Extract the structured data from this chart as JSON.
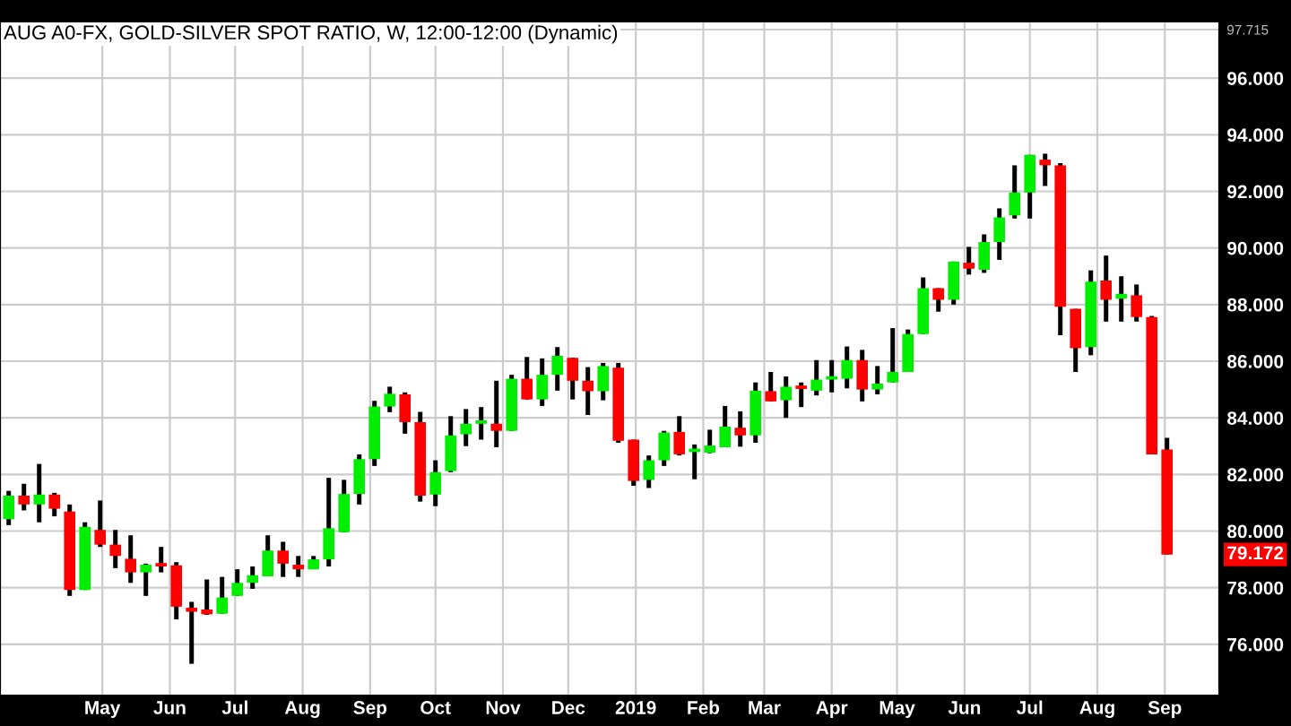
{
  "chart_data": {
    "type": "candlestick",
    "title": "AUG A0-FX, GOLD-SILVER SPOT RATIO, W, 12:00-12:00 (Dynamic)",
    "x": [
      "2018-03-19",
      "2018-03-26",
      "2018-04-02",
      "2018-04-09",
      "2018-04-16",
      "2018-04-23",
      "2018-04-30",
      "2018-05-07",
      "2018-05-14",
      "2018-05-21",
      "2018-05-28",
      "2018-06-04",
      "2018-06-11",
      "2018-06-18",
      "2018-06-25",
      "2018-07-02",
      "2018-07-09",
      "2018-07-16",
      "2018-07-23",
      "2018-07-30",
      "2018-08-06",
      "2018-08-13",
      "2018-08-20",
      "2018-08-27",
      "2018-09-03",
      "2018-09-10",
      "2018-09-17",
      "2018-09-24",
      "2018-10-01",
      "2018-10-08",
      "2018-10-15",
      "2018-10-22",
      "2018-10-29",
      "2018-11-05",
      "2018-11-12",
      "2018-11-19",
      "2018-11-26",
      "2018-12-03",
      "2018-12-10",
      "2018-12-17",
      "2018-12-24",
      "2018-12-31",
      "2019-01-07",
      "2019-01-14",
      "2019-01-21",
      "2019-01-28",
      "2019-02-04",
      "2019-02-11",
      "2019-02-18",
      "2019-02-25",
      "2019-03-04",
      "2019-03-11",
      "2019-03-18",
      "2019-03-25",
      "2019-04-01",
      "2019-04-08",
      "2019-04-15",
      "2019-04-22",
      "2019-04-29",
      "2019-05-06",
      "2019-05-13",
      "2019-05-20",
      "2019-05-27",
      "2019-06-03",
      "2019-06-10",
      "2019-06-17",
      "2019-06-24",
      "2019-07-01",
      "2019-07-08",
      "2019-07-15",
      "2019-07-22",
      "2019-07-29",
      "2019-08-05",
      "2019-08-12",
      "2019-08-19",
      "2019-08-26",
      "2019-09-02"
    ],
    "ohlc": [
      [
        80.42,
        81.42,
        80.21,
        81.25
      ],
      [
        81.25,
        81.67,
        80.73,
        80.94
      ],
      [
        80.94,
        82.37,
        80.31,
        81.29
      ],
      [
        81.29,
        81.35,
        80.52,
        80.79
      ],
      [
        80.69,
        80.94,
        77.71,
        77.92
      ],
      [
        77.92,
        80.31,
        77.92,
        80.15
      ],
      [
        80.04,
        81.08,
        79.44,
        79.52
      ],
      [
        79.52,
        80.04,
        78.69,
        79.12
      ],
      [
        79.02,
        79.85,
        78.17,
        78.54
      ],
      [
        78.54,
        78.85,
        77.71,
        78.81
      ],
      [
        78.81,
        79.44,
        78.54,
        78.75
      ],
      [
        78.79,
        78.9,
        76.88,
        77.33
      ],
      [
        77.29,
        77.5,
        75.31,
        77.15
      ],
      [
        77.23,
        78.29,
        77.04,
        77.06
      ],
      [
        77.08,
        78.38,
        77.08,
        77.65
      ],
      [
        77.71,
        78.65,
        77.71,
        78.17
      ],
      [
        78.17,
        78.75,
        77.96,
        78.44
      ],
      [
        78.4,
        79.85,
        78.4,
        79.31
      ],
      [
        79.31,
        79.62,
        78.38,
        78.85
      ],
      [
        78.81,
        79.12,
        78.38,
        78.65
      ],
      [
        78.65,
        79.12,
        78.65,
        79.0
      ],
      [
        79.0,
        81.88,
        78.75,
        80.1
      ],
      [
        79.96,
        81.81,
        79.96,
        81.31
      ],
      [
        81.31,
        82.71,
        80.94,
        82.54
      ],
      [
        82.54,
        84.6,
        82.3,
        84.4
      ],
      [
        84.4,
        85.1,
        84.2,
        84.85
      ],
      [
        84.83,
        84.9,
        83.44,
        83.85
      ],
      [
        83.85,
        84.21,
        81.04,
        81.25
      ],
      [
        81.29,
        82.5,
        80.88,
        82.08
      ],
      [
        82.12,
        84.06,
        82.08,
        83.38
      ],
      [
        83.42,
        84.31,
        83.0,
        83.79
      ],
      [
        83.79,
        84.38,
        83.23,
        83.88
      ],
      [
        83.79,
        85.31,
        82.96,
        83.54
      ],
      [
        83.54,
        85.52,
        83.54,
        85.38
      ],
      [
        85.38,
        86.15,
        84.65,
        84.65
      ],
      [
        84.65,
        86.1,
        84.42,
        85.52
      ],
      [
        85.52,
        86.5,
        84.96,
        86.19
      ],
      [
        86.12,
        86.12,
        84.65,
        85.31
      ],
      [
        85.31,
        85.79,
        84.1,
        84.94
      ],
      [
        84.94,
        85.94,
        84.62,
        85.83
      ],
      [
        85.77,
        85.94,
        83.12,
        83.19
      ],
      [
        83.23,
        83.23,
        81.6,
        81.77
      ],
      [
        81.81,
        82.67,
        81.52,
        82.5
      ],
      [
        82.5,
        83.54,
        82.3,
        83.48
      ],
      [
        83.5,
        84.06,
        82.67,
        82.71
      ],
      [
        82.79,
        83.06,
        81.83,
        82.83
      ],
      [
        82.77,
        83.58,
        82.75,
        83.02
      ],
      [
        82.96,
        84.42,
        82.96,
        83.69
      ],
      [
        83.65,
        84.23,
        82.98,
        83.38
      ],
      [
        83.38,
        85.25,
        83.12,
        84.96
      ],
      [
        84.94,
        85.62,
        84.58,
        84.58
      ],
      [
        84.62,
        85.46,
        84.0,
        85.1
      ],
      [
        85.06,
        85.25,
        84.38,
        85.02
      ],
      [
        84.96,
        86.04,
        84.79,
        85.35
      ],
      [
        85.35,
        86.04,
        84.9,
        85.46
      ],
      [
        85.38,
        86.52,
        85.04,
        86.04
      ],
      [
        86.04,
        86.4,
        84.58,
        85.0
      ],
      [
        85.0,
        85.83,
        84.83,
        85.21
      ],
      [
        85.25,
        87.17,
        85.25,
        85.62
      ],
      [
        85.62,
        87.12,
        85.62,
        86.96
      ],
      [
        86.96,
        88.96,
        86.96,
        88.58
      ],
      [
        88.58,
        88.58,
        87.75,
        88.17
      ],
      [
        88.17,
        89.52,
        88.0,
        89.52
      ],
      [
        89.48,
        90.04,
        89.06,
        89.27
      ],
      [
        89.23,
        90.48,
        89.12,
        90.21
      ],
      [
        90.21,
        91.4,
        89.58,
        91.08
      ],
      [
        91.15,
        92.92,
        91.04,
        91.96
      ],
      [
        91.96,
        93.29,
        91.04,
        93.29
      ],
      [
        93.12,
        93.33,
        92.19,
        92.92
      ],
      [
        92.92,
        93.0,
        86.92,
        87.92
      ],
      [
        87.85,
        87.85,
        85.62,
        86.46
      ],
      [
        86.5,
        89.21,
        86.21,
        88.81
      ],
      [
        88.85,
        89.73,
        87.4,
        88.17
      ],
      [
        88.21,
        89.0,
        87.4,
        88.38
      ],
      [
        88.33,
        88.71,
        87.4,
        87.56
      ],
      [
        87.56,
        87.6,
        82.71,
        82.71
      ],
      [
        82.88,
        83.29,
        79.172,
        79.172
      ]
    ],
    "colors": [
      "#00ee00",
      "#ff0000",
      "#00ee00",
      "#ff0000",
      "#ff0000",
      "#00ee00",
      "#ff0000",
      "#ff0000",
      "#ff0000",
      "#00ee00",
      "#ff0000",
      "#ff0000",
      "#ff0000",
      "#ff0000",
      "#00ee00",
      "#00ee00",
      "#00ee00",
      "#00ee00",
      "#ff0000",
      "#ff0000",
      "#00ee00",
      "#00ee00",
      "#00ee00",
      "#00ee00",
      "#00ee00",
      "#00ee00",
      "#ff0000",
      "#ff0000",
      "#00ee00",
      "#00ee00",
      "#00ee00",
      "#00ee00",
      "#ff0000",
      "#00ee00",
      "#ff0000",
      "#00ee00",
      "#00ee00",
      "#ff0000",
      "#ff0000",
      "#00ee00",
      "#ff0000",
      "#ff0000",
      "#00ee00",
      "#00ee00",
      "#ff0000",
      "#00ee00",
      "#00ee00",
      "#00ee00",
      "#ff0000",
      "#00ee00",
      "#ff0000",
      "#00ee00",
      "#ff0000",
      "#00ee00",
      "#00ee00",
      "#00ee00",
      "#ff0000",
      "#00ee00",
      "#00ee00",
      "#00ee00",
      "#00ee00",
      "#ff0000",
      "#00ee00",
      "#ff0000",
      "#00ee00",
      "#00ee00",
      "#00ee00",
      "#00ee00",
      "#ff0000",
      "#ff0000",
      "#ff0000",
      "#00ee00",
      "#ff0000",
      "#00ee00",
      "#ff0000",
      "#ff0000",
      "#ff0000"
    ],
    "xlim": [
      "2018-03-15",
      "2019-09-26"
    ],
    "xticks": [
      {
        "value": "2018-05-01",
        "label": "May"
      },
      {
        "value": "2018-06-01",
        "label": "Jun"
      },
      {
        "value": "2018-07-01",
        "label": "Jul"
      },
      {
        "value": "2018-08-01",
        "label": "Aug"
      },
      {
        "value": "2018-09-01",
        "label": "Sep"
      },
      {
        "value": "2018-10-01",
        "label": "Oct"
      },
      {
        "value": "2018-11-01",
        "label": "Nov"
      },
      {
        "value": "2018-12-01",
        "label": "Dec"
      },
      {
        "value": "2019-01-01",
        "label": "2019"
      },
      {
        "value": "2019-02-01",
        "label": "Feb"
      },
      {
        "value": "2019-03-01",
        "label": "Mar"
      },
      {
        "value": "2019-04-01",
        "label": "Apr"
      },
      {
        "value": "2019-05-01",
        "label": "May"
      },
      {
        "value": "2019-06-01",
        "label": "Jun"
      },
      {
        "value": "2019-07-01",
        "label": "Jul"
      },
      {
        "value": "2019-08-01",
        "label": "Aug"
      },
      {
        "value": "2019-09-01",
        "label": "Sep"
      }
    ],
    "ylim": [
      74.19,
      98.0
    ],
    "yticks": [
      {
        "value": 76,
        "label": "76.000"
      },
      {
        "value": 78,
        "label": "78.000"
      },
      {
        "value": 80,
        "label": "80.000"
      },
      {
        "value": 82,
        "label": "82.000"
      },
      {
        "value": 84,
        "label": "84.000"
      },
      {
        "value": 86,
        "label": "86.000"
      },
      {
        "value": 88,
        "label": "88.000"
      },
      {
        "value": 90,
        "label": "90.000"
      },
      {
        "value": 92,
        "label": "92.000"
      },
      {
        "value": 94,
        "label": "94.000"
      },
      {
        "value": 96,
        "label": "96.000"
      },
      {
        "value": 97.715,
        "label": "97.715"
      }
    ],
    "annotations": [
      {
        "text": "79.172",
        "y": 79.172
      }
    ],
    "grid": true
  }
}
